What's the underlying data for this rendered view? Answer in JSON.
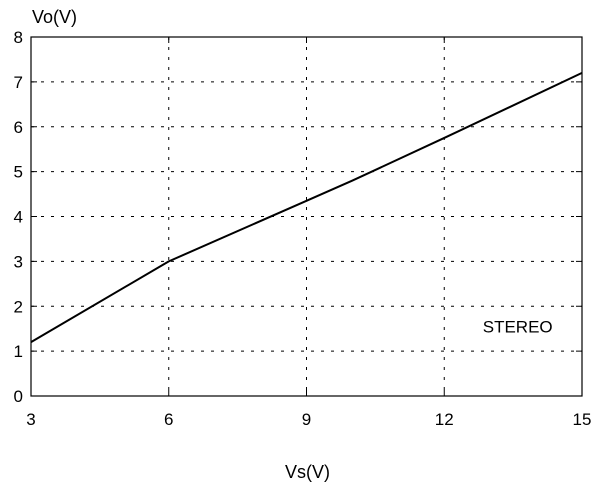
{
  "chart_data": {
    "type": "line",
    "title": "",
    "xlabel": "Vs(V)",
    "ylabel": "Vo(V)",
    "xlim": [
      3,
      15
    ],
    "ylim": [
      0,
      8
    ],
    "xticks": [
      3,
      6,
      9,
      12,
      15
    ],
    "yticks": [
      0,
      1,
      2,
      3,
      4,
      5,
      6,
      7,
      8
    ],
    "xtick_labels": [
      "3",
      "6",
      "9",
      "12",
      "15"
    ],
    "ytick_labels": [
      "0",
      "1",
      "2",
      "3",
      "4",
      "5",
      "6",
      "7",
      "8"
    ],
    "grid": true,
    "series": [
      {
        "x": [
          3,
          6,
          9,
          10,
          12,
          15
        ],
        "y": [
          1.2,
          3.0,
          4.35,
          4.8,
          5.75,
          7.2
        ],
        "color": "#000000"
      }
    ],
    "annotations": [
      {
        "text": "STEREO",
        "x": 13.6,
        "y": 1.55
      }
    ]
  }
}
